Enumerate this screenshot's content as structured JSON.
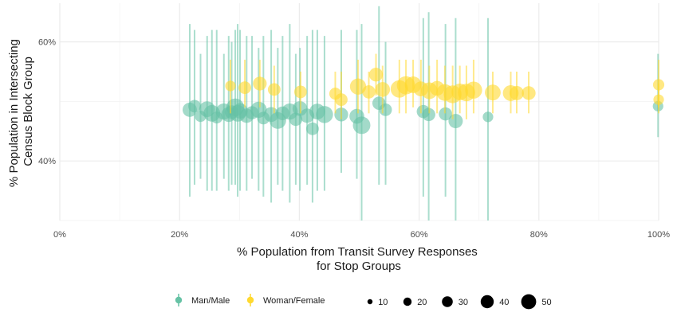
{
  "chart_data": {
    "type": "scatter",
    "subtype": "point-range (point size = count, vertical error bars)",
    "title": "",
    "xlabel": "% Population from Transit Survey Responses\nfor Stop Groups",
    "ylabel": "% Population in Intersecting\nCensus Block Group",
    "xlim": [
      0,
      100
    ],
    "ylim": [
      30,
      66.5
    ],
    "x_ticks": [
      0,
      20,
      40,
      60,
      80,
      100
    ],
    "x_tick_labels": [
      "0%",
      "20%",
      "40%",
      "60%",
      "80%",
      "100%"
    ],
    "x_minor_ticks": [
      10,
      30,
      50,
      70,
      90
    ],
    "y_ticks": [
      40,
      60
    ],
    "y_tick_labels": [
      "40%",
      "60%"
    ],
    "y_minor_ticks": [
      30,
      50
    ],
    "grid": true,
    "legend_position": "bottom",
    "legend_color_title": "",
    "legend_size_title": "",
    "size_legend": {
      "values": [
        10,
        20,
        30,
        40,
        50
      ],
      "labels": [
        "10",
        "20",
        "30",
        "40",
        "50"
      ]
    },
    "series": [
      {
        "name": "Man/Male",
        "color": "#66c2a5",
        "points": [
          {
            "x": 21.7,
            "y": 48.6,
            "ymin": 34,
            "ymax": 63,
            "n": 20
          },
          {
            "x": 22.5,
            "y": 49.2,
            "ymin": 36,
            "ymax": 62,
            "n": 14
          },
          {
            "x": 23.5,
            "y": 47.5,
            "ymin": 37,
            "ymax": 58,
            "n": 10
          },
          {
            "x": 24.6,
            "y": 48.7,
            "ymin": 35,
            "ymax": 61,
            "n": 26
          },
          {
            "x": 25.4,
            "y": 48.0,
            "ymin": 35,
            "ymax": 62,
            "n": 30
          },
          {
            "x": 26.2,
            "y": 47.3,
            "ymin": 35,
            "ymax": 62,
            "n": 12
          },
          {
            "x": 27.4,
            "y": 48.3,
            "ymin": 37,
            "ymax": 58,
            "n": 28
          },
          {
            "x": 28.2,
            "y": 47.8,
            "ymin": 35,
            "ymax": 61,
            "n": 22
          },
          {
            "x": 28.7,
            "y": 48.2,
            "ymin": 36,
            "ymax": 60,
            "n": 18
          },
          {
            "x": 29.3,
            "y": 49.0,
            "ymin": 36,
            "ymax": 62,
            "n": 36
          },
          {
            "x": 29.7,
            "y": 48.0,
            "ymin": 34,
            "ymax": 63,
            "n": 30
          },
          {
            "x": 30.1,
            "y": 48.4,
            "ymin": 35,
            "ymax": 62,
            "n": 24
          },
          {
            "x": 31.2,
            "y": 47.6,
            "ymin": 35,
            "ymax": 61,
            "n": 20
          },
          {
            "x": 32.1,
            "y": 48.1,
            "ymin": 37,
            "ymax": 61,
            "n": 16
          },
          {
            "x": 33.2,
            "y": 48.6,
            "ymin": 35,
            "ymax": 59,
            "n": 28
          },
          {
            "x": 34.0,
            "y": 47.2,
            "ymin": 34,
            "ymax": 61,
            "n": 14
          },
          {
            "x": 35.3,
            "y": 47.8,
            "ymin": 33,
            "ymax": 62,
            "n": 22
          },
          {
            "x": 36.4,
            "y": 46.8,
            "ymin": 36,
            "ymax": 59,
            "n": 30
          },
          {
            "x": 37.2,
            "y": 48.0,
            "ymin": 35,
            "ymax": 61,
            "n": 18
          },
          {
            "x": 38.4,
            "y": 48.3,
            "ymin": 33,
            "ymax": 63,
            "n": 28
          },
          {
            "x": 39.4,
            "y": 47.0,
            "ymin": 36,
            "ymax": 58,
            "n": 16
          },
          {
            "x": 40.1,
            "y": 48.8,
            "ymin": 35,
            "ymax": 59,
            "n": 22
          },
          {
            "x": 41.3,
            "y": 47.6,
            "ymin": 36,
            "ymax": 61,
            "n": 20
          },
          {
            "x": 42.2,
            "y": 45.4,
            "ymin": 33,
            "ymax": 62,
            "n": 14
          },
          {
            "x": 43.0,
            "y": 48.3,
            "ymin": 35,
            "ymax": 62,
            "n": 26
          },
          {
            "x": 44.2,
            "y": 47.8,
            "ymin": 35,
            "ymax": 61,
            "n": 32
          },
          {
            "x": 47.0,
            "y": 47.8,
            "ymin": 38,
            "ymax": 62,
            "n": 18
          },
          {
            "x": 49.6,
            "y": 47.5,
            "ymin": 37,
            "ymax": 62,
            "n": 22
          },
          {
            "x": 50.4,
            "y": 46.0,
            "ymin": 30,
            "ymax": 63,
            "n": 34
          },
          {
            "x": 53.3,
            "y": 49.7,
            "ymin": 36,
            "ymax": 66,
            "n": 16
          },
          {
            "x": 54.4,
            "y": 48.6,
            "ymin": 36,
            "ymax": 60,
            "n": 14
          },
          {
            "x": 60.7,
            "y": 48.3,
            "ymin": 34,
            "ymax": 64,
            "n": 16
          },
          {
            "x": 61.6,
            "y": 47.8,
            "ymin": 30,
            "ymax": 65,
            "n": 16
          },
          {
            "x": 64.4,
            "y": 47.9,
            "ymin": 34,
            "ymax": 63,
            "n": 16
          },
          {
            "x": 66.1,
            "y": 46.7,
            "ymin": 30,
            "ymax": 64,
            "n": 20
          },
          {
            "x": 71.5,
            "y": 47.4,
            "ymin": 30,
            "ymax": 64,
            "n": 8
          },
          {
            "x": 99.9,
            "y": 49.2,
            "ymin": 44,
            "ymax": 58,
            "n": 8
          }
        ]
      },
      {
        "name": "Woman/Female",
        "color": "#ffd92f",
        "points": [
          {
            "x": 28.5,
            "y": 52.6,
            "ymin": 48,
            "ymax": 57,
            "n": 8
          },
          {
            "x": 30.9,
            "y": 52.3,
            "ymin": 49,
            "ymax": 57,
            "n": 14
          },
          {
            "x": 33.4,
            "y": 53.0,
            "ymin": 49,
            "ymax": 57,
            "n": 18
          },
          {
            "x": 35.8,
            "y": 52.0,
            "ymin": 48,
            "ymax": 56,
            "n": 14
          },
          {
            "x": 40.2,
            "y": 51.6,
            "ymin": 48,
            "ymax": 55,
            "n": 14
          },
          {
            "x": 46.0,
            "y": 51.3,
            "ymin": 48,
            "ymax": 55,
            "n": 12
          },
          {
            "x": 47.0,
            "y": 50.3,
            "ymin": 47,
            "ymax": 55,
            "n": 14
          },
          {
            "x": 49.8,
            "y": 52.5,
            "ymin": 48,
            "ymax": 57,
            "n": 28
          },
          {
            "x": 51.6,
            "y": 51.6,
            "ymin": 48,
            "ymax": 55,
            "n": 16
          },
          {
            "x": 52.8,
            "y": 54.5,
            "ymin": 51,
            "ymax": 58,
            "n": 18
          },
          {
            "x": 53.9,
            "y": 52.0,
            "ymin": 48,
            "ymax": 56,
            "n": 22
          },
          {
            "x": 56.7,
            "y": 52.1,
            "ymin": 48,
            "ymax": 57,
            "n": 34
          },
          {
            "x": 57.8,
            "y": 52.7,
            "ymin": 48,
            "ymax": 57,
            "n": 38
          },
          {
            "x": 59.0,
            "y": 52.8,
            "ymin": 49,
            "ymax": 57,
            "n": 30
          },
          {
            "x": 60.3,
            "y": 52.1,
            "ymin": 48,
            "ymax": 57,
            "n": 22
          },
          {
            "x": 61.7,
            "y": 51.8,
            "ymin": 48,
            "ymax": 56,
            "n": 30
          },
          {
            "x": 63.0,
            "y": 52.2,
            "ymin": 48,
            "ymax": 57,
            "n": 22
          },
          {
            "x": 64.3,
            "y": 51.5,
            "ymin": 48,
            "ymax": 56,
            "n": 30
          },
          {
            "x": 65.6,
            "y": 51.2,
            "ymin": 47,
            "ymax": 56,
            "n": 36
          },
          {
            "x": 66.8,
            "y": 51.6,
            "ymin": 48,
            "ymax": 56,
            "n": 30
          },
          {
            "x": 67.9,
            "y": 51.5,
            "ymin": 47,
            "ymax": 56,
            "n": 34
          },
          {
            "x": 69.1,
            "y": 51.9,
            "ymin": 48,
            "ymax": 57,
            "n": 32
          },
          {
            "x": 72.3,
            "y": 51.5,
            "ymin": 48,
            "ymax": 55,
            "n": 26
          },
          {
            "x": 75.3,
            "y": 51.4,
            "ymin": 48,
            "ymax": 55,
            "n": 26
          },
          {
            "x": 76.3,
            "y": 51.4,
            "ymin": 48,
            "ymax": 55,
            "n": 20
          },
          {
            "x": 78.3,
            "y": 51.4,
            "ymin": 48,
            "ymax": 55,
            "n": 18
          },
          {
            "x": 100,
            "y": 52.8,
            "ymin": 49,
            "ymax": 57,
            "n": 10
          },
          {
            "x": 100,
            "y": 50.3,
            "ymin": 48,
            "ymax": 53,
            "n": 8
          }
        ]
      }
    ]
  }
}
